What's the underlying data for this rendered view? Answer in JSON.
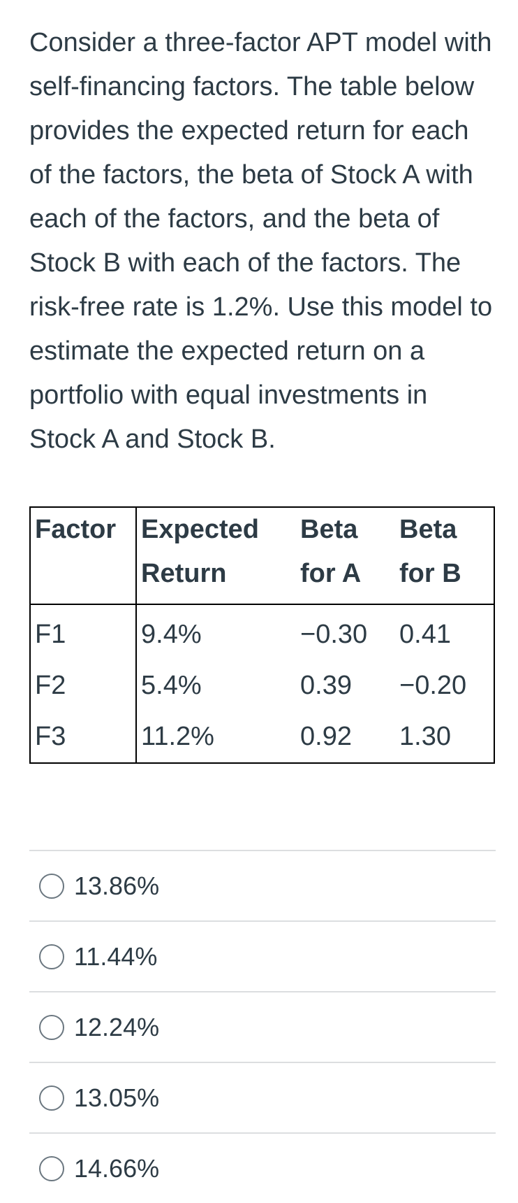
{
  "question": {
    "text": "Consider a three-factor APT model with self-financing factors. The table below provides the expected return for each of the factors, the beta of Stock A with each of the factors, and the beta of Stock B with each of the factors. The risk-free rate is 1.2%. Use this model to estimate the expected return on a portfolio with equal investments in Stock A and Stock B."
  },
  "table": {
    "headers": {
      "factor": "Factor",
      "expected_return_1": "Expected",
      "expected_return_2": "Return",
      "beta_a_1": "Beta",
      "beta_a_2": "for A",
      "beta_b_1": "Beta",
      "beta_b_2": "for B"
    },
    "rows": [
      {
        "factor": "F1",
        "expected_return": "9.4%",
        "beta_a": "−0.30",
        "beta_b": "0.41"
      },
      {
        "factor": "F2",
        "expected_return": "5.4%",
        "beta_a": "0.39",
        "beta_b": "−0.20"
      },
      {
        "factor": "F3",
        "expected_return": "11.2%",
        "beta_a": "0.92",
        "beta_b": "1.30"
      }
    ]
  },
  "answers": [
    {
      "label": "13.86%"
    },
    {
      "label": "11.44%"
    },
    {
      "label": "12.24%"
    },
    {
      "label": "13.05%"
    },
    {
      "label": "14.66%"
    }
  ]
}
